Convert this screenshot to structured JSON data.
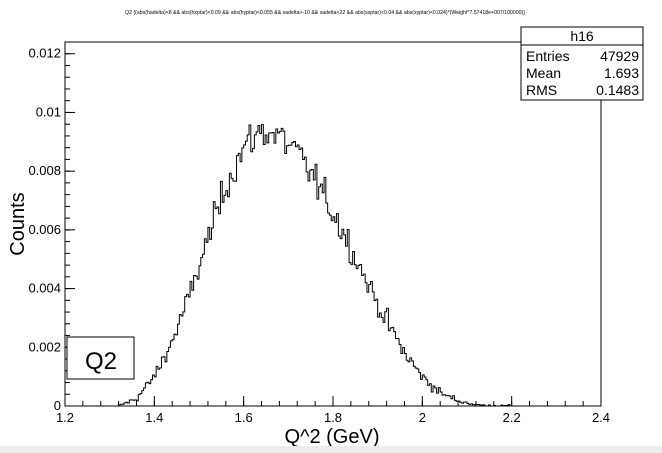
{
  "chart_data": {
    "type": "histogram",
    "title": "Q2 {(abs(hadelta)<8 && abs(hxptar)<0.09 && abs(hyptar)<0.055 && sadelta>-10 && sadelta<22 && abs(sxptar)<0.04 && abs(syptar)<0.024)*(Weight*7.57418e+007/100000)}",
    "xlabel": "Q^2 (GeV)",
    "ylabel": "Counts",
    "xlim": [
      1.2,
      2.4
    ],
    "ylim": [
      0,
      0.0124
    ],
    "x_tick_labels": [
      "1.2",
      "1.4",
      "1.6",
      "1.8",
      "2",
      "2.2",
      "2.4"
    ],
    "x_tick_values": [
      1.2,
      1.4,
      1.6,
      1.8,
      2.0,
      2.2,
      2.4
    ],
    "y_tick_labels": [
      "0",
      "0.002",
      "0.004",
      "0.006",
      "0.008",
      "0.01",
      "0.012"
    ],
    "y_tick_values": [
      0,
      0.002,
      0.004,
      0.006,
      0.008,
      0.01,
      0.012
    ],
    "bin_start": 1.2,
    "bin_width": 0.004,
    "envelope": {
      "x": [
        1.32,
        1.36,
        1.4,
        1.44,
        1.48,
        1.52,
        1.56,
        1.6,
        1.64,
        1.68,
        1.72,
        1.76,
        1.8,
        1.84,
        1.88,
        1.92,
        1.96,
        2.0,
        2.04,
        2.08,
        2.12,
        2.16,
        2.2
      ],
      "y": [
        0.0,
        0.00025,
        0.001,
        0.0022,
        0.0038,
        0.0057,
        0.0075,
        0.0088,
        0.0094,
        0.0092,
        0.0086,
        0.0077,
        0.0066,
        0.0054,
        0.0041,
        0.0029,
        0.0018,
        0.001,
        0.00045,
        0.00018,
        4e-05,
        1e-05,
        0.0
      ]
    },
    "stats": {
      "name": "h16",
      "entries_label": "Entries",
      "entries": "47929",
      "mean_label": "Mean",
      "mean": "1.693",
      "rms_label": "RMS",
      "rms": "0.1483"
    },
    "label_box": "Q2",
    "grid": false,
    "legend": "none"
  }
}
